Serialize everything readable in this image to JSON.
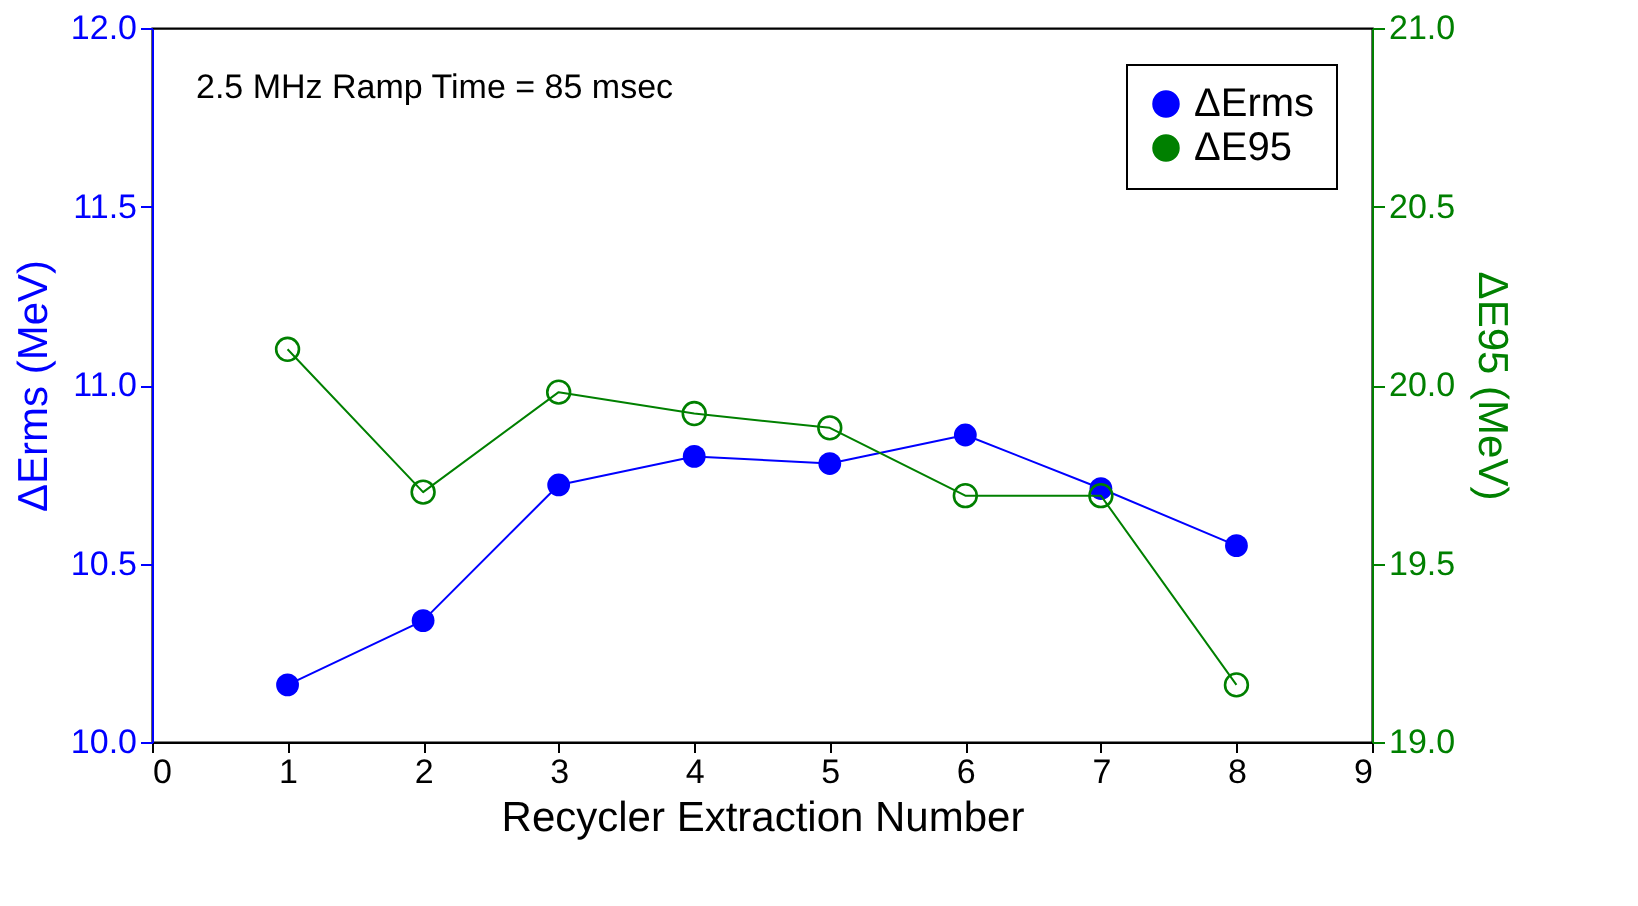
{
  "chart_data": {
    "type": "line",
    "xlabel": "Recycler Extraction Number",
    "ylabel": "ΔErms (MeV)",
    "y2label": "ΔE95 (MeV)",
    "x": [
      1,
      2,
      3,
      4,
      5,
      6,
      7,
      8
    ],
    "series": [
      {
        "name": "ΔErms",
        "color": "#0000ff",
        "values": [
          10.16,
          10.34,
          10.72,
          10.8,
          10.78,
          10.86,
          10.71,
          10.55
        ]
      },
      {
        "name": "ΔE95",
        "color": "#008000",
        "axis": "y2",
        "values": [
          20.1,
          19.7,
          19.98,
          19.92,
          19.88,
          19.69,
          19.69,
          19.16
        ]
      }
    ],
    "xlim": [
      0,
      9
    ],
    "xticks": [
      0,
      1,
      2,
      3,
      4,
      5,
      6,
      7,
      8,
      9
    ],
    "ylim": [
      10.0,
      12.0
    ],
    "yticks": [
      {
        "value": 10.0,
        "label": "10.0"
      },
      {
        "value": 10.5,
        "label": "10.5"
      },
      {
        "value": 11.0,
        "label": "11.0"
      },
      {
        "value": 11.5,
        "label": "11.5"
      },
      {
        "value": 12.0,
        "label": "12.0"
      }
    ],
    "y2lim": [
      19.0,
      21.0
    ],
    "y2ticks": [
      {
        "value": 19.0,
        "label": "19.0"
      },
      {
        "value": 19.5,
        "label": "19.5"
      },
      {
        "value": 20.0,
        "label": "20.0"
      },
      {
        "value": 20.5,
        "label": "20.5"
      },
      {
        "value": 21.0,
        "label": "21.0"
      }
    ],
    "annotations": [
      "2.5 MHz Ramp Time = 85 msec"
    ],
    "legend": "top right",
    "grid": false,
    "marker": "circle",
    "line_style": "solid"
  }
}
